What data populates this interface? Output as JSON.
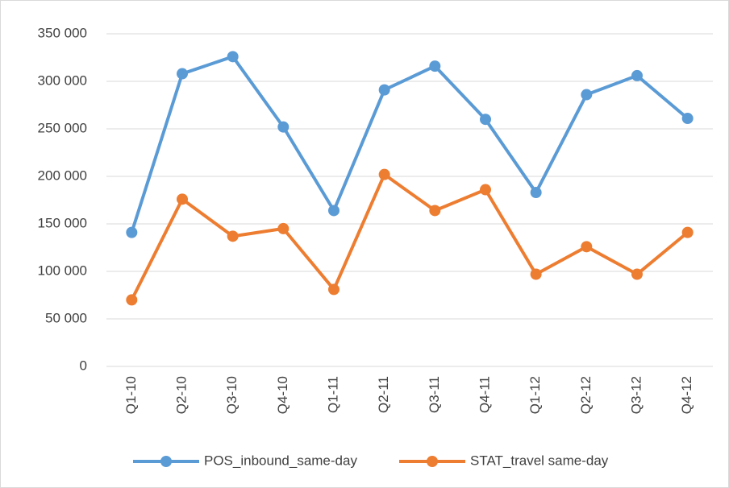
{
  "chart_data": {
    "type": "line",
    "categories": [
      "Q1-10",
      "Q2-10",
      "Q3-10",
      "Q4-10",
      "Q1-11",
      "Q2-11",
      "Q3-11",
      "Q4-11",
      "Q1-12",
      "Q2-12",
      "Q3-12",
      "Q4-12"
    ],
    "series": [
      {
        "name": "POS_inbound_same-day",
        "color": "#5b9bd5",
        "values": [
          141000,
          308000,
          326000,
          252000,
          164000,
          291000,
          316000,
          260000,
          183000,
          286000,
          306000,
          261000
        ]
      },
      {
        "name": "STAT_travel same-day",
        "color": "#ed7d31",
        "values": [
          70000,
          176000,
          137000,
          145000,
          81000,
          202000,
          164000,
          186000,
          97000,
          126000,
          97000,
          141000
        ]
      }
    ],
    "ylim": [
      0,
      350000
    ],
    "yticks": [
      0,
      {
        "value": 50000,
        "label": "50 000"
      },
      {
        "value": 100000,
        "label": "100 000"
      },
      {
        "value": 150000,
        "label": "150 000"
      },
      {
        "value": 200000,
        "label": "200 000"
      },
      {
        "value": 250000,
        "label": "250 000"
      },
      {
        "value": 300000,
        "label": "300 000"
      },
      {
        "value": 350000,
        "label": "350 000"
      }
    ],
    "grid": true,
    "legend": "bottom"
  }
}
